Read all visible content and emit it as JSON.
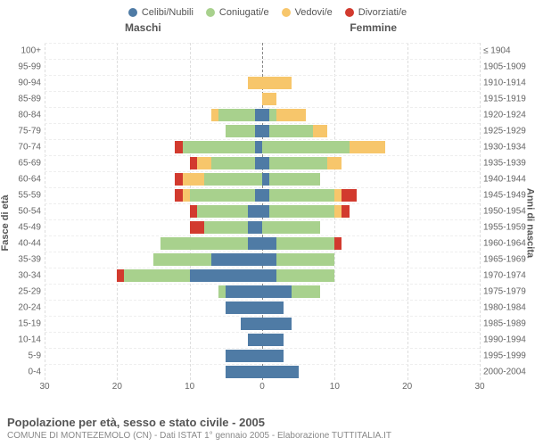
{
  "legend": [
    {
      "label": "Celibi/Nubili",
      "color": "#4f7ba5"
    },
    {
      "label": "Coniugati/e",
      "color": "#a8d18d"
    },
    {
      "label": "Vedovi/e",
      "color": "#f7c66b"
    },
    {
      "label": "Divorziati/e",
      "color": "#d23a2e"
    }
  ],
  "headers": {
    "male": "Maschi",
    "female": "Femmine"
  },
  "axis": {
    "left": "Fasce di età",
    "right": "Anni di nascita",
    "xmax": 30,
    "xticks": [
      30,
      20,
      10,
      0,
      10,
      20,
      30
    ]
  },
  "colors": {
    "celibi": "#4f7ba5",
    "coniugati": "#a8d18d",
    "vedovi": "#f7c66b",
    "divorziati": "#d23a2e",
    "grid": "#dddddd",
    "grid_h": "#eeeeee",
    "center": "#888888"
  },
  "rows": [
    {
      "age": "100+",
      "birth": "≤ 1904",
      "m": {
        "cel": 0,
        "con": 0,
        "ved": 0,
        "div": 0
      },
      "f": {
        "cel": 0,
        "con": 0,
        "ved": 0,
        "div": 0
      }
    },
    {
      "age": "95-99",
      "birth": "1905-1909",
      "m": {
        "cel": 0,
        "con": 0,
        "ved": 0,
        "div": 0
      },
      "f": {
        "cel": 0,
        "con": 0,
        "ved": 0,
        "div": 0
      }
    },
    {
      "age": "90-94",
      "birth": "1910-1914",
      "m": {
        "cel": 0,
        "con": 0,
        "ved": 2,
        "div": 0
      },
      "f": {
        "cel": 0,
        "con": 0,
        "ved": 4,
        "div": 0
      }
    },
    {
      "age": "85-89",
      "birth": "1915-1919",
      "m": {
        "cel": 0,
        "con": 0,
        "ved": 0,
        "div": 0
      },
      "f": {
        "cel": 0,
        "con": 0,
        "ved": 2,
        "div": 0
      }
    },
    {
      "age": "80-84",
      "birth": "1920-1924",
      "m": {
        "cel": 1,
        "con": 5,
        "ved": 1,
        "div": 0
      },
      "f": {
        "cel": 1,
        "con": 1,
        "ved": 4,
        "div": 0
      }
    },
    {
      "age": "75-79",
      "birth": "1925-1929",
      "m": {
        "cel": 1,
        "con": 4,
        "ved": 0,
        "div": 0
      },
      "f": {
        "cel": 1,
        "con": 6,
        "ved": 2,
        "div": 0
      }
    },
    {
      "age": "70-74",
      "birth": "1930-1934",
      "m": {
        "cel": 1,
        "con": 10,
        "ved": 0,
        "div": 1
      },
      "f": {
        "cel": 0,
        "con": 12,
        "ved": 5,
        "div": 0
      }
    },
    {
      "age": "65-69",
      "birth": "1935-1939",
      "m": {
        "cel": 1,
        "con": 6,
        "ved": 2,
        "div": 1
      },
      "f": {
        "cel": 1,
        "con": 8,
        "ved": 2,
        "div": 0
      }
    },
    {
      "age": "60-64",
      "birth": "1940-1944",
      "m": {
        "cel": 0,
        "con": 8,
        "ved": 3,
        "div": 1
      },
      "f": {
        "cel": 1,
        "con": 7,
        "ved": 0,
        "div": 0
      }
    },
    {
      "age": "55-59",
      "birth": "1945-1949",
      "m": {
        "cel": 1,
        "con": 9,
        "ved": 1,
        "div": 1
      },
      "f": {
        "cel": 1,
        "con": 9,
        "ved": 1,
        "div": 2
      }
    },
    {
      "age": "50-54",
      "birth": "1950-1954",
      "m": {
        "cel": 2,
        "con": 7,
        "ved": 0,
        "div": 1
      },
      "f": {
        "cel": 1,
        "con": 9,
        "ved": 1,
        "div": 1
      }
    },
    {
      "age": "45-49",
      "birth": "1955-1959",
      "m": {
        "cel": 2,
        "con": 6,
        "ved": 0,
        "div": 2
      },
      "f": {
        "cel": 0,
        "con": 8,
        "ved": 0,
        "div": 0
      }
    },
    {
      "age": "40-44",
      "birth": "1960-1964",
      "m": {
        "cel": 2,
        "con": 12,
        "ved": 0,
        "div": 0
      },
      "f": {
        "cel": 2,
        "con": 8,
        "ved": 0,
        "div": 1
      }
    },
    {
      "age": "35-39",
      "birth": "1965-1969",
      "m": {
        "cel": 7,
        "con": 8,
        "ved": 0,
        "div": 0
      },
      "f": {
        "cel": 2,
        "con": 8,
        "ved": 0,
        "div": 0
      }
    },
    {
      "age": "30-34",
      "birth": "1970-1974",
      "m": {
        "cel": 10,
        "con": 9,
        "ved": 0,
        "div": 1
      },
      "f": {
        "cel": 2,
        "con": 8,
        "ved": 0,
        "div": 0
      }
    },
    {
      "age": "25-29",
      "birth": "1975-1979",
      "m": {
        "cel": 5,
        "con": 1,
        "ved": 0,
        "div": 0
      },
      "f": {
        "cel": 4,
        "con": 4,
        "ved": 0,
        "div": 0
      }
    },
    {
      "age": "20-24",
      "birth": "1980-1984",
      "m": {
        "cel": 5,
        "con": 0,
        "ved": 0,
        "div": 0
      },
      "f": {
        "cel": 3,
        "con": 0,
        "ved": 0,
        "div": 0
      }
    },
    {
      "age": "15-19",
      "birth": "1985-1989",
      "m": {
        "cel": 3,
        "con": 0,
        "ved": 0,
        "div": 0
      },
      "f": {
        "cel": 4,
        "con": 0,
        "ved": 0,
        "div": 0
      }
    },
    {
      "age": "10-14",
      "birth": "1990-1994",
      "m": {
        "cel": 2,
        "con": 0,
        "ved": 0,
        "div": 0
      },
      "f": {
        "cel": 3,
        "con": 0,
        "ved": 0,
        "div": 0
      }
    },
    {
      "age": "5-9",
      "birth": "1995-1999",
      "m": {
        "cel": 5,
        "con": 0,
        "ved": 0,
        "div": 0
      },
      "f": {
        "cel": 3,
        "con": 0,
        "ved": 0,
        "div": 0
      }
    },
    {
      "age": "0-4",
      "birth": "2000-2004",
      "m": {
        "cel": 5,
        "con": 0,
        "ved": 0,
        "div": 0
      },
      "f": {
        "cel": 5,
        "con": 0,
        "ved": 0,
        "div": 0
      }
    }
  ],
  "footer": {
    "title": "Popolazione per età, sesso e stato civile - 2005",
    "subtitle": "COMUNE DI MONTEZEMOLO (CN) - Dati ISTAT 1° gennaio 2005 - Elaborazione TUTTITALIA.IT"
  }
}
